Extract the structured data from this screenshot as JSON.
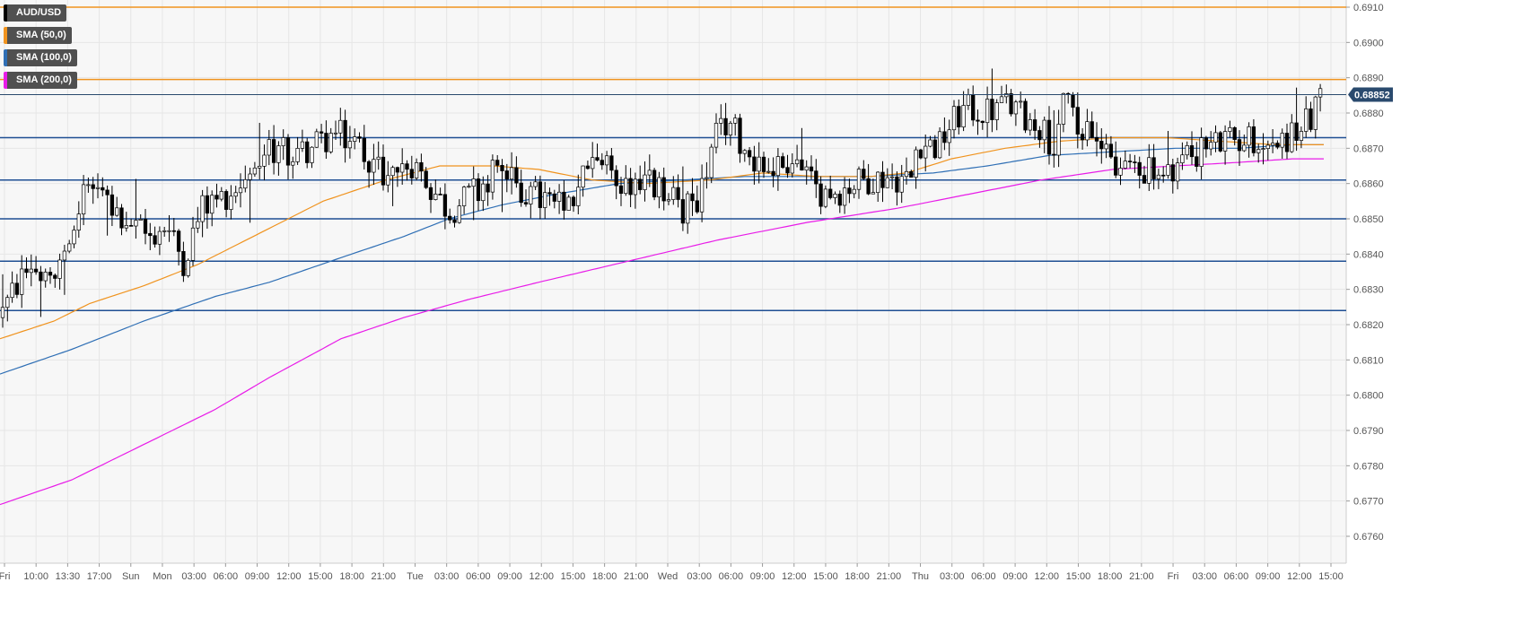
{
  "chart_data": {
    "type": "candlestick",
    "symbol": "AUD/USD",
    "ylim": [
      0.6751,
      0.6913
    ],
    "y_ticks": [
      "0.6910",
      "0.6900",
      "0.6890",
      "0.6880",
      "0.6870",
      "0.6860",
      "0.6850",
      "0.6840",
      "0.6830",
      "0.6820",
      "0.6810",
      "0.6800",
      "0.6790",
      "0.6780",
      "0.6770",
      "0.6760"
    ],
    "x_ticks": [
      "Fri",
      "10:00",
      "13:30",
      "17:00",
      "Sun",
      "Mon",
      "03:00",
      "06:00",
      "09:00",
      "12:00",
      "15:00",
      "18:00",
      "21:00",
      "Tue",
      "03:00",
      "06:00",
      "09:00",
      "12:00",
      "15:00",
      "18:00",
      "21:00",
      "Wed",
      "03:00",
      "06:00",
      "09:00",
      "12:00",
      "15:00",
      "18:00",
      "21:00",
      "Thu",
      "03:00",
      "06:00",
      "09:00",
      "12:00",
      "15:00",
      "18:00",
      "21:00",
      "Fri",
      "03:00",
      "06:00",
      "09:00",
      "12:00",
      "15:00"
    ],
    "current_price": "0.68852",
    "price_line_color": "#2a4a6e",
    "legend": [
      {
        "label": "AUD/USD",
        "color": "#000000"
      },
      {
        "label": "SMA (50,0)",
        "color": "#f0931e"
      },
      {
        "label": "SMA (100,0)",
        "color": "#2f6fb5"
      },
      {
        "label": "SMA (200,0)",
        "color": "#e81ce8"
      }
    ],
    "levels": [
      {
        "price": 0.691,
        "color": "#f0931e"
      },
      {
        "price": 0.68895,
        "color": "#f0931e"
      },
      {
        "price": 0.6873,
        "color": "#1f4f93"
      },
      {
        "price": 0.6861,
        "color": "#1f4f93"
      },
      {
        "price": 0.685,
        "color": "#1f4f93"
      },
      {
        "price": 0.6838,
        "color": "#1f4f93"
      },
      {
        "price": 0.6824,
        "color": "#1f4f93"
      }
    ],
    "price_path": [
      [
        0,
        0.6822
      ],
      [
        18,
        0.6831
      ],
      [
        35,
        0.6837
      ],
      [
        60,
        0.683
      ],
      [
        80,
        0.685
      ],
      [
        102,
        0.6861
      ],
      [
        120,
        0.6855
      ],
      [
        140,
        0.685
      ],
      [
        165,
        0.6845
      ],
      [
        185,
        0.6848
      ],
      [
        205,
        0.6838
      ],
      [
        225,
        0.6853
      ],
      [
        260,
        0.6858
      ],
      [
        300,
        0.687
      ],
      [
        330,
        0.6868
      ],
      [
        375,
        0.6874
      ],
      [
        400,
        0.6871
      ],
      [
        430,
        0.6862
      ],
      [
        460,
        0.6866
      ],
      [
        500,
        0.6852
      ],
      [
        530,
        0.6858
      ],
      [
        555,
        0.6865
      ],
      [
        580,
        0.6858
      ],
      [
        610,
        0.6855
      ],
      [
        635,
        0.6852
      ],
      [
        660,
        0.6869
      ],
      [
        690,
        0.686
      ],
      [
        720,
        0.6861
      ],
      [
        760,
        0.6853
      ],
      [
        780,
        0.6857
      ],
      [
        798,
        0.6873
      ],
      [
        812,
        0.6878
      ],
      [
        830,
        0.687
      ],
      [
        855,
        0.6864
      ],
      [
        885,
        0.6867
      ],
      [
        910,
        0.6858
      ],
      [
        935,
        0.6858
      ],
      [
        960,
        0.6861
      ],
      [
        990,
        0.6862
      ],
      [
        1015,
        0.6861
      ],
      [
        1022,
        0.6872
      ],
      [
        1045,
        0.687
      ],
      [
        1060,
        0.6877
      ],
      [
        1075,
        0.6881
      ],
      [
        1100,
        0.688
      ],
      [
        1120,
        0.6883
      ],
      [
        1140,
        0.6879
      ],
      [
        1160,
        0.6876
      ],
      [
        1175,
        0.687
      ],
      [
        1188,
        0.6887
      ],
      [
        1200,
        0.6872
      ],
      [
        1225,
        0.6875
      ],
      [
        1245,
        0.6864
      ],
      [
        1270,
        0.6865
      ],
      [
        1300,
        0.6861
      ],
      [
        1320,
        0.6868
      ],
      [
        1350,
        0.6871
      ],
      [
        1390,
        0.6873
      ],
      [
        1420,
        0.6871
      ],
      [
        1440,
        0.6874
      ],
      [
        1460,
        0.6878
      ],
      [
        1475,
        0.6885
      ]
    ],
    "sma50_path": [
      [
        0,
        0.6816
      ],
      [
        60,
        0.6821
      ],
      [
        100,
        0.6826
      ],
      [
        160,
        0.6831
      ],
      [
        220,
        0.6837
      ],
      [
        290,
        0.6846
      ],
      [
        360,
        0.6855
      ],
      [
        430,
        0.6861
      ],
      [
        490,
        0.6865
      ],
      [
        550,
        0.6865
      ],
      [
        600,
        0.6864
      ],
      [
        660,
        0.6861
      ],
      [
        720,
        0.686
      ],
      [
        790,
        0.6861
      ],
      [
        850,
        0.6863
      ],
      [
        910,
        0.6862
      ],
      [
        970,
        0.6862
      ],
      [
        1010,
        0.6863
      ],
      [
        1060,
        0.6867
      ],
      [
        1120,
        0.687
      ],
      [
        1180,
        0.6872
      ],
      [
        1240,
        0.6873
      ],
      [
        1300,
        0.6873
      ],
      [
        1360,
        0.6872
      ],
      [
        1420,
        0.6871
      ],
      [
        1475,
        0.6871
      ]
    ],
    "sma100_path": [
      [
        0,
        0.6806
      ],
      [
        80,
        0.6813
      ],
      [
        160,
        0.6821
      ],
      [
        240,
        0.6828
      ],
      [
        300,
        0.6832
      ],
      [
        380,
        0.6839
      ],
      [
        450,
        0.6845
      ],
      [
        500,
        0.685
      ],
      [
        560,
        0.6854
      ],
      [
        620,
        0.6857
      ],
      [
        690,
        0.686
      ],
      [
        760,
        0.6861
      ],
      [
        830,
        0.6862
      ],
      [
        900,
        0.6862
      ],
      [
        970,
        0.6862
      ],
      [
        1040,
        0.6863
      ],
      [
        1100,
        0.6865
      ],
      [
        1170,
        0.6868
      ],
      [
        1240,
        0.6869
      ],
      [
        1310,
        0.687
      ],
      [
        1380,
        0.687
      ],
      [
        1440,
        0.6871
      ],
      [
        1475,
        0.6871
      ]
    ],
    "sma200_path": [
      [
        0,
        0.6769
      ],
      [
        80,
        0.6776
      ],
      [
        160,
        0.6786
      ],
      [
        240,
        0.6796
      ],
      [
        300,
        0.6805
      ],
      [
        380,
        0.6816
      ],
      [
        450,
        0.6822
      ],
      [
        520,
        0.6827
      ],
      [
        600,
        0.6832
      ],
      [
        700,
        0.6838
      ],
      [
        800,
        0.6844
      ],
      [
        900,
        0.6849
      ],
      [
        1000,
        0.6853
      ],
      [
        1080,
        0.6857
      ],
      [
        1160,
        0.6861
      ],
      [
        1240,
        0.6864
      ],
      [
        1310,
        0.6865
      ],
      [
        1380,
        0.6866
      ],
      [
        1440,
        0.6867
      ],
      [
        1475,
        0.6867
      ]
    ]
  }
}
